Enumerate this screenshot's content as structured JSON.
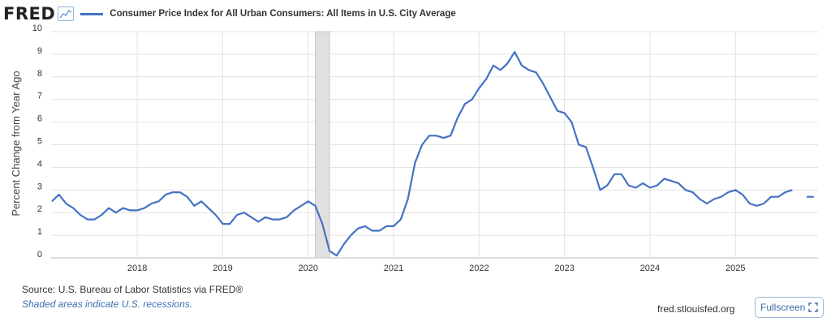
{
  "header": {
    "logo": "FRED",
    "legend_label": "Consumer Price Index for All Urban Consumers: All Items in U.S. City Average"
  },
  "colors": {
    "series": "#4572c4",
    "grid": "#e2e2e2",
    "recession": "#e0e0e0",
    "axis_text": "#333333"
  },
  "footer": {
    "source": "Source: U.S. Bureau of Labor Statistics via FRED®",
    "note": "Shaded areas indicate U.S. recessions.",
    "site": "fred.stlouisfed.org",
    "fullscreen_label": "Fullscreen"
  },
  "chart_data": {
    "type": "line",
    "title": "",
    "xlabel": "",
    "ylabel": "Percent Change from Year Ago",
    "ylim": [
      0,
      10
    ],
    "yticks": [
      0,
      1,
      2,
      3,
      4,
      5,
      6,
      7,
      8,
      9,
      10
    ],
    "xlim": [
      "2017-01",
      "2025-12"
    ],
    "xticks": [
      "2018",
      "2019",
      "2020",
      "2021",
      "2022",
      "2023",
      "2024",
      "2025"
    ],
    "grid": true,
    "recessions": [
      {
        "start": "2020-02",
        "end": "2020-04"
      }
    ],
    "series": [
      {
        "name": "Consumer Price Index for All Urban Consumers: All Items in U.S. City Average",
        "points": [
          [
            "2017-01",
            2.5
          ],
          [
            "2017-02",
            2.8
          ],
          [
            "2017-03",
            2.4
          ],
          [
            "2017-04",
            2.2
          ],
          [
            "2017-05",
            1.9
          ],
          [
            "2017-06",
            1.7
          ],
          [
            "2017-07",
            1.7
          ],
          [
            "2017-08",
            1.9
          ],
          [
            "2017-09",
            2.2
          ],
          [
            "2017-10",
            2.0
          ],
          [
            "2017-11",
            2.2
          ],
          [
            "2017-12",
            2.1
          ],
          [
            "2018-01",
            2.1
          ],
          [
            "2018-02",
            2.2
          ],
          [
            "2018-03",
            2.4
          ],
          [
            "2018-04",
            2.5
          ],
          [
            "2018-05",
            2.8
          ],
          [
            "2018-06",
            2.9
          ],
          [
            "2018-07",
            2.9
          ],
          [
            "2018-08",
            2.7
          ],
          [
            "2018-09",
            2.3
          ],
          [
            "2018-10",
            2.5
          ],
          [
            "2018-11",
            2.2
          ],
          [
            "2018-12",
            1.9
          ],
          [
            "2019-01",
            1.5
          ],
          [
            "2019-02",
            1.5
          ],
          [
            "2019-03",
            1.9
          ],
          [
            "2019-04",
            2.0
          ],
          [
            "2019-05",
            1.8
          ],
          [
            "2019-06",
            1.6
          ],
          [
            "2019-07",
            1.8
          ],
          [
            "2019-08",
            1.7
          ],
          [
            "2019-09",
            1.7
          ],
          [
            "2019-10",
            1.8
          ],
          [
            "2019-11",
            2.1
          ],
          [
            "2019-12",
            2.3
          ],
          [
            "2020-01",
            2.5
          ],
          [
            "2020-02",
            2.3
          ],
          [
            "2020-03",
            1.5
          ],
          [
            "2020-04",
            0.3
          ],
          [
            "2020-05",
            0.1
          ],
          [
            "2020-06",
            0.6
          ],
          [
            "2020-07",
            1.0
          ],
          [
            "2020-08",
            1.3
          ],
          [
            "2020-09",
            1.4
          ],
          [
            "2020-10",
            1.2
          ],
          [
            "2020-11",
            1.2
          ],
          [
            "2020-12",
            1.4
          ],
          [
            "2021-01",
            1.4
          ],
          [
            "2021-02",
            1.7
          ],
          [
            "2021-03",
            2.6
          ],
          [
            "2021-04",
            4.2
          ],
          [
            "2021-05",
            5.0
          ],
          [
            "2021-06",
            5.4
          ],
          [
            "2021-07",
            5.4
          ],
          [
            "2021-08",
            5.3
          ],
          [
            "2021-09",
            5.4
          ],
          [
            "2021-10",
            6.2
          ],
          [
            "2021-11",
            6.8
          ],
          [
            "2021-12",
            7.0
          ],
          [
            "2022-01",
            7.5
          ],
          [
            "2022-02",
            7.9
          ],
          [
            "2022-03",
            8.5
          ],
          [
            "2022-04",
            8.3
          ],
          [
            "2022-05",
            8.6
          ],
          [
            "2022-06",
            9.1
          ],
          [
            "2022-07",
            8.5
          ],
          [
            "2022-08",
            8.3
          ],
          [
            "2022-09",
            8.2
          ],
          [
            "2022-10",
            7.7
          ],
          [
            "2022-11",
            7.1
          ],
          [
            "2022-12",
            6.5
          ],
          [
            "2023-01",
            6.4
          ],
          [
            "2023-02",
            6.0
          ],
          [
            "2023-03",
            5.0
          ],
          [
            "2023-04",
            4.9
          ],
          [
            "2023-05",
            4.0
          ],
          [
            "2023-06",
            3.0
          ],
          [
            "2023-07",
            3.2
          ],
          [
            "2023-08",
            3.7
          ],
          [
            "2023-09",
            3.7
          ],
          [
            "2023-10",
            3.2
          ],
          [
            "2023-11",
            3.1
          ],
          [
            "2023-12",
            3.3
          ],
          [
            "2024-01",
            3.1
          ],
          [
            "2024-02",
            3.2
          ],
          [
            "2024-03",
            3.5
          ],
          [
            "2024-04",
            3.4
          ],
          [
            "2024-05",
            3.3
          ],
          [
            "2024-06",
            3.0
          ],
          [
            "2024-07",
            2.9
          ],
          [
            "2024-08",
            2.6
          ],
          [
            "2024-09",
            2.4
          ],
          [
            "2024-10",
            2.6
          ],
          [
            "2024-11",
            2.7
          ],
          [
            "2024-12",
            2.9
          ],
          [
            "2025-01",
            3.0
          ],
          [
            "2025-02",
            2.8
          ],
          [
            "2025-03",
            2.4
          ],
          [
            "2025-04",
            2.3
          ],
          [
            "2025-05",
            2.4
          ],
          [
            "2025-06",
            2.7
          ],
          [
            "2025-07",
            2.7
          ],
          [
            "2025-08",
            2.9
          ],
          [
            "2025-09",
            3.0
          ],
          [
            "2025-10",
            null
          ],
          [
            "2025-11",
            2.7
          ],
          [
            "2025-12",
            2.7
          ]
        ]
      }
    ]
  }
}
